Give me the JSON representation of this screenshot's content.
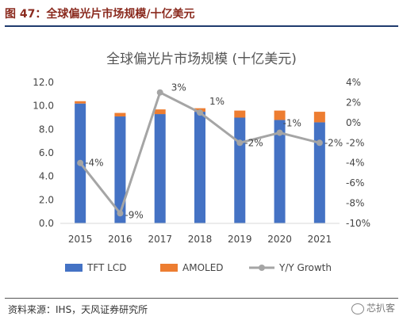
{
  "caption": "图 47：全球偏光片市场规模/十亿美元",
  "source": "资料来源：IHS，天风证券研究所",
  "watermark": "芯扒客",
  "colors": {
    "tft": "#4472c4",
    "amoled": "#ed7d31",
    "yoy": "#a5a5a5"
  },
  "chart_data": {
    "type": "bar",
    "title": "全球偏光片市场规模 (十亿美元)",
    "categories": [
      "2015",
      "2016",
      "2017",
      "2018",
      "2019",
      "2020",
      "2021"
    ],
    "series": [
      {
        "name": "TFT LCD",
        "type": "bar",
        "stack": true,
        "values": [
          10.2,
          9.1,
          9.3,
          9.5,
          9.0,
          8.8,
          8.6
        ]
      },
      {
        "name": "AMOLED",
        "type": "bar",
        "stack": true,
        "values": [
          0.2,
          0.3,
          0.4,
          0.3,
          0.6,
          0.8,
          0.9
        ]
      },
      {
        "name": "Y/Y Growth",
        "type": "line",
        "axis": "right",
        "values": [
          -4,
          -9,
          3,
          1,
          -2,
          -1,
          -2
        ],
        "labels": [
          "-4%",
          "-9%",
          "3%",
          "1%",
          "-2%",
          "-1%",
          "-2%"
        ]
      }
    ],
    "ylim": [
      0,
      12
    ],
    "yticks": [
      "12.0",
      "10.0",
      "8.0",
      "6.0",
      "4.0",
      "2.0",
      "0.0"
    ],
    "y2lim": [
      -10,
      4
    ],
    "y2ticks": [
      "4%",
      "2%",
      "0%",
      "-2%",
      "-4%",
      "-6%",
      "-8%",
      "-10%"
    ],
    "legend_position": "bottom"
  }
}
